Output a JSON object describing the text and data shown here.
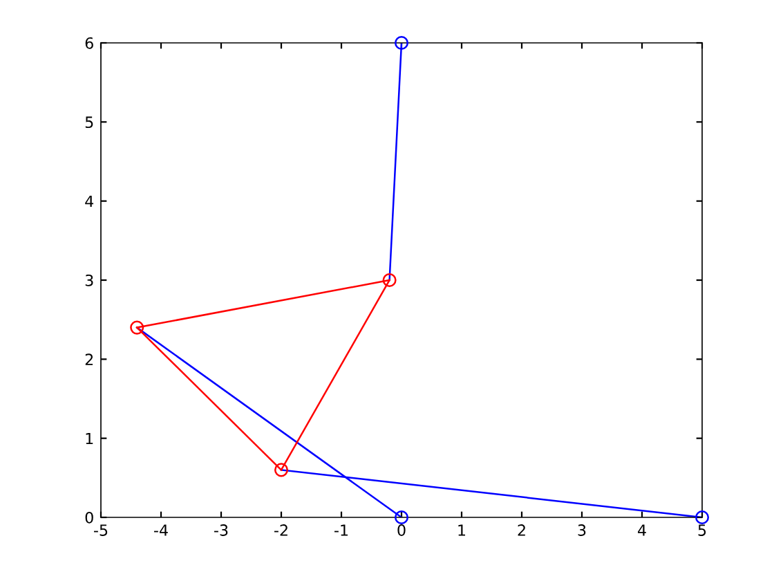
{
  "chart_data": {
    "type": "line",
    "xlim": [
      -5,
      5
    ],
    "ylim": [
      0,
      6
    ],
    "xticks": [
      -5,
      -4,
      -3,
      -2,
      -1,
      0,
      1,
      2,
      3,
      4,
      5
    ],
    "yticks": [
      0,
      1,
      2,
      3,
      4,
      5,
      6
    ],
    "grid": false,
    "series": [
      {
        "color": "#0000ff",
        "x": [
          0,
          -0.2
        ],
        "values": [
          6,
          3
        ],
        "marker": "none"
      },
      {
        "color": "#0000ff",
        "x": [
          -4.4,
          0
        ],
        "values": [
          2.4,
          0
        ],
        "marker": "none"
      },
      {
        "color": "#0000ff",
        "x": [
          -2,
          5
        ],
        "values": [
          0.6,
          0
        ],
        "marker": "none"
      },
      {
        "color": "#ff0000",
        "x": [
          -4.4,
          -0.2
        ],
        "values": [
          2.4,
          3
        ],
        "marker": "none"
      },
      {
        "color": "#ff0000",
        "x": [
          -4.4,
          -2
        ],
        "values": [
          2.4,
          0.6
        ],
        "marker": "none"
      },
      {
        "color": "#ff0000",
        "x": [
          -2,
          -0.2
        ],
        "values": [
          0.6,
          3
        ],
        "marker": "none"
      },
      {
        "type": "scatter",
        "color": "#ff0000",
        "x": [
          -0.2,
          -4.4,
          -2
        ],
        "values": [
          3,
          2.4,
          0.6
        ],
        "marker": "circle"
      },
      {
        "type": "scatter",
        "color": "#0000ff",
        "x": [
          0,
          0,
          5
        ],
        "values": [
          6,
          0,
          0
        ],
        "marker": "circle"
      }
    ]
  }
}
